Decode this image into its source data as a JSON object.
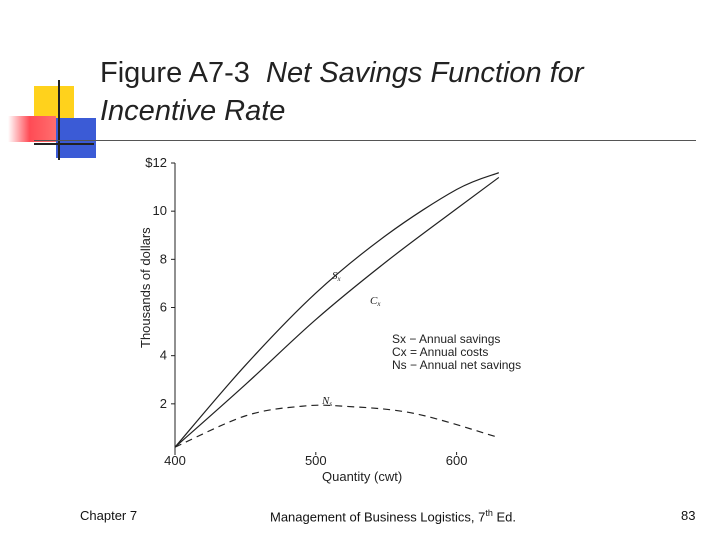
{
  "title": {
    "prefix": "Figure A7-3",
    "italic": "Net Savings Function for Incentive Rate"
  },
  "chart_data": {
    "type": "line",
    "xlabel": "Quantity (cwt)",
    "ylabel": "Thousands of dollars",
    "xlim": [
      400,
      650
    ],
    "ylim": [
      0,
      12
    ],
    "x_ticks": [
      "400",
      "500",
      "600"
    ],
    "y_ticks": [
      "2",
      "4",
      "6",
      "8",
      "10",
      "$12"
    ],
    "series": [
      {
        "name": "Sx",
        "label": "Sx = Annual savings",
        "style": "solid",
        "points": [
          [
            400,
            0.2
          ],
          [
            450,
            3.6
          ],
          [
            500,
            6.6
          ],
          [
            550,
            9.0
          ],
          [
            600,
            10.9
          ],
          [
            630,
            11.6
          ]
        ]
      },
      {
        "name": "Cx",
        "label": "Cx = Annual costs",
        "style": "solid",
        "points": [
          [
            400,
            0.2
          ],
          [
            450,
            2.8
          ],
          [
            500,
            5.5
          ],
          [
            550,
            7.9
          ],
          [
            600,
            10.1
          ],
          [
            630,
            11.4
          ]
        ]
      },
      {
        "name": "Ns",
        "label": "Ns = Annual net savings",
        "style": "dashed",
        "points": [
          [
            400,
            0.2
          ],
          [
            450,
            1.5
          ],
          [
            490,
            1.9
          ],
          [
            520,
            1.9
          ],
          [
            570,
            1.6
          ],
          [
            630,
            0.6
          ]
        ]
      }
    ],
    "legend": [
      "Sx − Annual savings",
      "Cx = Annual costs",
      "Ns − Annual net savings"
    ]
  },
  "footer": {
    "left": "Chapter 7",
    "center_main": "Management of Business Logistics, 7",
    "center_sup": "th",
    "center_end": " Ed.",
    "page": "83"
  }
}
